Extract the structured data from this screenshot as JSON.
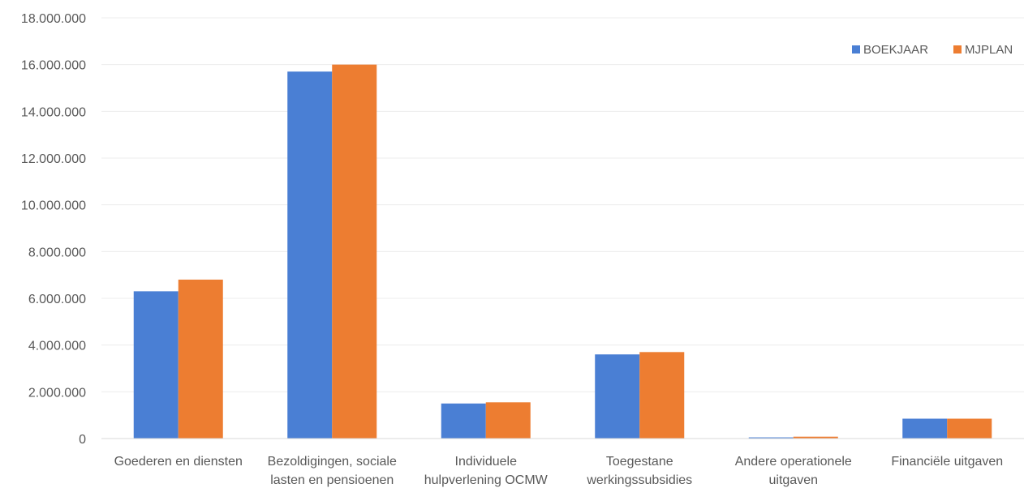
{
  "chart_data": {
    "type": "bar",
    "title": "",
    "xlabel": "",
    "ylabel": "",
    "ylim": [
      0,
      18000000
    ],
    "yticks": [
      0,
      2000000,
      4000000,
      6000000,
      8000000,
      10000000,
      12000000,
      14000000,
      16000000,
      18000000
    ],
    "ytick_labels": [
      "0",
      "2.000.000",
      "4.000.000",
      "6.000.000",
      "8.000.000",
      "10.000.000",
      "12.000.000",
      "14.000.000",
      "16.000.000",
      "18.000.000"
    ],
    "grid": true,
    "legend_position": "top-right",
    "categories": [
      [
        "Goederen en diensten"
      ],
      [
        "Bezoldigingen, sociale",
        "lasten en pensioenen"
      ],
      [
        "Individuele",
        "hulpverlening OCMW"
      ],
      [
        "Toegestane",
        "werkingssubsidies"
      ],
      [
        "Andere operationele",
        "uitgaven"
      ],
      [
        "Financiële uitgaven"
      ]
    ],
    "series": [
      {
        "name": "BOEKJAAR",
        "color": "#4a7fd4",
        "values": [
          6300000,
          15700000,
          1500000,
          3600000,
          50000,
          850000
        ]
      },
      {
        "name": "MJPLAN",
        "color": "#ed7d31",
        "values": [
          6800000,
          16000000,
          1550000,
          3700000,
          80000,
          850000
        ]
      }
    ]
  }
}
